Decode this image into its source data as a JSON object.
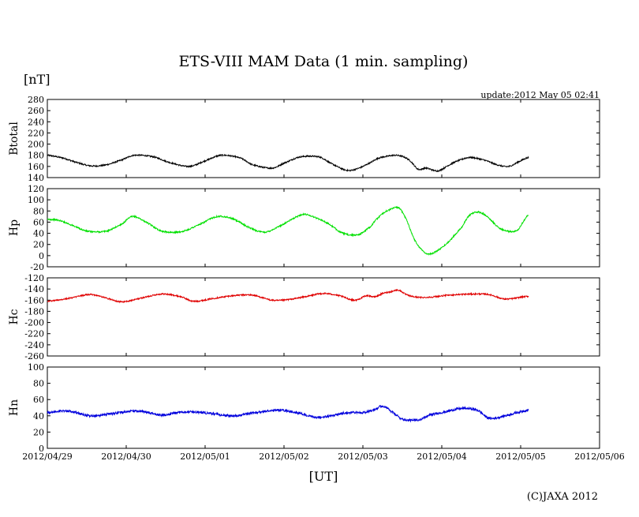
{
  "chart_data": {
    "type": "line",
    "title": "ETS-VIII MAM Data (1 min. sampling)",
    "y_unit": "[nT]",
    "update_text": "update:2012 May 05 02:41",
    "x_unit": "[UT]",
    "credit": "(C)JAXA 2012",
    "x_range": [
      "2012-04-29",
      "2012-05-06"
    ],
    "x_ticks": [
      "2012/04/29",
      "2012/04/30",
      "2012/05/01",
      "2012/05/02",
      "2012/05/03",
      "2012/05/04",
      "2012/05/05",
      "2012/05/06"
    ],
    "grid": false,
    "panels": [
      {
        "ylabel": "Btotal",
        "ylim": [
          140,
          280
        ],
        "yticks": [
          140,
          160,
          180,
          200,
          220,
          240,
          260,
          280
        ],
        "color": "#000000",
        "noise": 1.2,
        "x": [
          0.0,
          0.2,
          0.35,
          0.55,
          0.75,
          0.95,
          1.1,
          1.35,
          1.55,
          1.8,
          2.0,
          2.2,
          2.45,
          2.6,
          2.85,
          3.0,
          3.2,
          3.45,
          3.6,
          3.8,
          3.95,
          4.1,
          4.2,
          4.3,
          4.4,
          4.5,
          4.6,
          4.7,
          4.8,
          4.95,
          5.1,
          5.2,
          5.35,
          5.55,
          5.7,
          5.85,
          6.0,
          6.1
        ],
        "y": [
          180,
          175,
          168,
          161,
          163,
          172,
          180,
          177,
          167,
          160,
          170,
          180,
          175,
          163,
          157,
          166,
          177,
          177,
          165,
          153,
          157,
          167,
          175,
          178,
          180,
          178,
          170,
          155,
          157,
          152,
          163,
          170,
          176,
          171,
          163,
          160,
          170,
          176
        ]
      },
      {
        "ylabel": "Hp",
        "ylim": [
          -20,
          120
        ],
        "yticks": [
          -20,
          0,
          20,
          40,
          60,
          80,
          100,
          120
        ],
        "color": "#00e000",
        "noise": 1.3,
        "x": [
          0.0,
          0.15,
          0.3,
          0.5,
          0.75,
          0.95,
          1.08,
          1.25,
          1.45,
          1.7,
          1.95,
          2.15,
          2.35,
          2.55,
          2.75,
          2.95,
          3.1,
          3.25,
          3.4,
          3.55,
          3.75,
          3.95,
          4.1,
          4.15,
          4.25,
          4.3,
          4.45,
          4.55,
          4.65,
          4.75,
          4.85,
          5.05,
          5.25,
          5.35,
          5.45,
          5.55,
          5.75,
          5.95,
          6.1
        ],
        "y": [
          65,
          63,
          55,
          44,
          44,
          57,
          70,
          60,
          44,
          43,
          57,
          70,
          66,
          51,
          42,
          53,
          65,
          74,
          68,
          58,
          40,
          38,
          52,
          62,
          75,
          80,
          86,
          65,
          30,
          10,
          3,
          20,
          50,
          72,
          78,
          72,
          48,
          45,
          73
        ]
      },
      {
        "ylabel": "Hc",
        "ylim": [
          -260,
          -120
        ],
        "yticks": [
          -260,
          -240,
          -220,
          -200,
          -180,
          -160,
          -140,
          -120
        ],
        "color": "#e00000",
        "noise": 1.2,
        "x": [
          0.0,
          0.3,
          0.55,
          0.8,
          0.95,
          1.2,
          1.45,
          1.7,
          1.85,
          2.1,
          2.35,
          2.6,
          2.85,
          3.05,
          3.3,
          3.5,
          3.7,
          3.9,
          4.05,
          4.15,
          4.25,
          4.35,
          4.45,
          4.55,
          4.65,
          4.8,
          5.1,
          5.4,
          5.6,
          5.8,
          6.1
        ],
        "y": [
          -162,
          -156,
          -150,
          -158,
          -163,
          -156,
          -149,
          -154,
          -162,
          -157,
          -152,
          -151,
          -160,
          -159,
          -153,
          -148,
          -152,
          -160,
          -152,
          -154,
          -148,
          -145,
          -142,
          -150,
          -154,
          -155,
          -151,
          -149,
          -150,
          -158,
          -153
        ]
      },
      {
        "ylabel": "Hn",
        "ylim": [
          0,
          100
        ],
        "yticks": [
          0,
          20,
          40,
          60,
          80,
          100
        ],
        "color": "#0000dd",
        "noise": 1.4,
        "x": [
          0.0,
          0.25,
          0.55,
          0.85,
          1.15,
          1.45,
          1.75,
          2.05,
          2.35,
          2.65,
          2.95,
          3.2,
          3.4,
          3.6,
          3.8,
          4.0,
          4.15,
          4.25,
          4.35,
          4.5,
          4.7,
          4.85,
          5.05,
          5.25,
          5.45,
          5.6,
          5.8,
          6.0,
          6.1
        ],
        "y": [
          44,
          46,
          40,
          43,
          46,
          41,
          45,
          43,
          40,
          44,
          47,
          43,
          38,
          40,
          44,
          44,
          48,
          52,
          46,
          36,
          35,
          41,
          45,
          49,
          47,
          37,
          40,
          45,
          47
        ]
      }
    ]
  }
}
